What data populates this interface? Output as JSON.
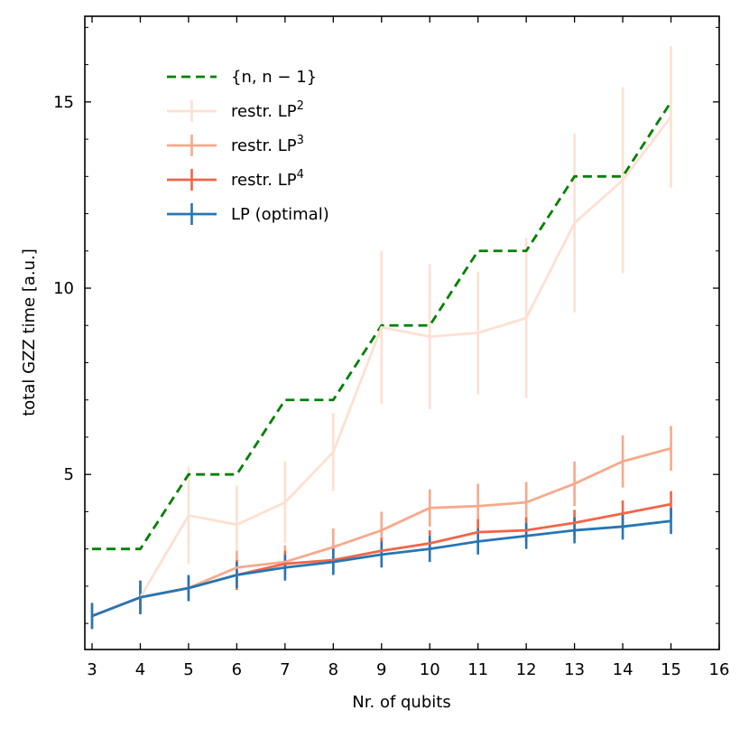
{
  "chart_data": {
    "type": "line",
    "title": "",
    "xlabel": "Nr. of qubits",
    "ylabel": "total GZZ time [a.u.]",
    "xlim": [
      2.85,
      16.0
    ],
    "ylim": [
      0.3,
      17.3
    ],
    "xticks": [
      3,
      4,
      5,
      6,
      7,
      8,
      9,
      10,
      11,
      12,
      13,
      14,
      15,
      16
    ],
    "yticks": [
      5,
      10,
      15
    ],
    "legend_position": "upper-left",
    "series": [
      {
        "name": "{n, n − 1}",
        "color": "#008000",
        "style": "dashed-step",
        "x": [
          3,
          4,
          5,
          6,
          7,
          8,
          9,
          10,
          11,
          12,
          13,
          14,
          15
        ],
        "y": [
          3,
          3,
          5,
          5,
          7,
          7,
          9,
          9,
          11,
          11,
          13,
          13,
          15
        ]
      },
      {
        "name": "restr. LP",
        "legend_sup": "2",
        "color": "#fee0d2",
        "style": "errorbar",
        "x": [
          4,
          5,
          6,
          7,
          8,
          9,
          10,
          11,
          12,
          13,
          14,
          15
        ],
        "y": [
          1.7,
          3.9,
          3.65,
          4.25,
          5.6,
          8.95,
          8.7,
          8.8,
          9.2,
          11.75,
          12.9,
          14.6
        ],
        "err": [
          0.3,
          1.3,
          1.05,
          1.1,
          1.05,
          2.05,
          1.95,
          1.65,
          2.15,
          2.4,
          2.5,
          1.9
        ]
      },
      {
        "name": "restr. LP",
        "legend_sup": "3",
        "color": "#f7a98b",
        "style": "errorbar",
        "x": [
          4,
          5,
          6,
          7,
          8,
          9,
          10,
          11,
          12,
          13,
          14,
          15
        ],
        "y": [
          1.7,
          1.95,
          2.5,
          2.65,
          3.05,
          3.5,
          4.1,
          4.15,
          4.25,
          4.75,
          5.35,
          5.7
        ],
        "err": [
          0.3,
          0.3,
          0.45,
          0.45,
          0.5,
          0.5,
          0.5,
          0.6,
          0.55,
          0.6,
          0.7,
          0.6
        ]
      },
      {
        "name": "restr. LP",
        "legend_sup": "4",
        "color": "#f16548",
        "style": "errorbar",
        "x": [
          3,
          4,
          5,
          6,
          7,
          8,
          9,
          10,
          11,
          12,
          13,
          14,
          15
        ],
        "y": [
          1.2,
          1.7,
          1.95,
          2.3,
          2.6,
          2.7,
          2.95,
          3.15,
          3.45,
          3.5,
          3.7,
          3.95,
          4.2
        ],
        "err": [
          0.35,
          0.45,
          0.35,
          0.4,
          0.35,
          0.35,
          0.35,
          0.35,
          0.35,
          0.35,
          0.35,
          0.35,
          0.35
        ]
      },
      {
        "name": "LP (optimal)",
        "color": "#2676b4",
        "style": "errorbar",
        "x": [
          3,
          4,
          5,
          6,
          7,
          8,
          9,
          10,
          11,
          12,
          13,
          14,
          15
        ],
        "y": [
          1.2,
          1.7,
          1.95,
          2.3,
          2.5,
          2.65,
          2.85,
          3.0,
          3.2,
          3.35,
          3.5,
          3.6,
          3.75
        ],
        "err": [
          0.35,
          0.45,
          0.35,
          0.35,
          0.35,
          0.35,
          0.35,
          0.35,
          0.35,
          0.35,
          0.35,
          0.35,
          0.35
        ]
      }
    ]
  }
}
